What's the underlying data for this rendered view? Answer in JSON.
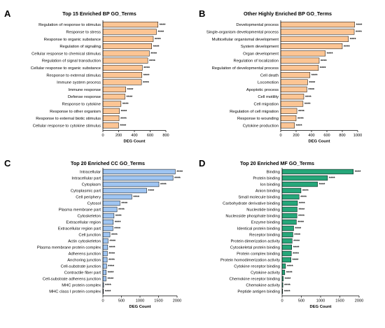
{
  "chart_data": [
    {
      "type": "bar",
      "orientation": "horizontal",
      "letter": "A",
      "title": "Top 15 Enriched BP GO_Terms",
      "xlabel": "DEG Count",
      "ylabel": "",
      "xlim": [
        0,
        800
      ],
      "xticks": [
        "0",
        "200",
        "400",
        "600",
        "800"
      ],
      "color": "#fcc594",
      "categories": [
        "Regulation of response to stimulus",
        "Response to stress",
        "Response to organic substance",
        "Regulation of signaling",
        "Cellular response to chemical stimulus",
        "Regulation of signal transduction",
        "Cellular response to organic substance",
        "Response to external stimulus",
        "Immune system process",
        "Immune response",
        "Defense response",
        "Response to cytokine",
        "Response to other organism",
        "Response to external biotic stimulus",
        "Cellular response to cytokine stimulus"
      ],
      "values": [
        700,
        680,
        640,
        620,
        590,
        570,
        500,
        495,
        490,
        290,
        280,
        230,
        210,
        205,
        200
      ],
      "significance": [
        "****",
        "****",
        "****",
        "****",
        "****",
        "****",
        "****",
        "****",
        "****",
        "****",
        "****",
        "****",
        "****",
        "****",
        "****"
      ]
    },
    {
      "type": "bar",
      "orientation": "horizontal",
      "letter": "B",
      "title": "Other Highly Enriched BP GO_Terms",
      "xlabel": "DEG Count",
      "ylabel": "",
      "xlim": [
        0,
        1000
      ],
      "xticks": [
        "0",
        "200",
        "400",
        "600",
        "800",
        "1000"
      ],
      "color": "#fcc594",
      "categories": [
        "Developmental process",
        "Single-organism developmental process",
        "Multicellular organismal development",
        "System development",
        "Organ development",
        "Regulation of localization",
        "Regulation of developmental process",
        "Cell death",
        "Locomotion",
        "Apoptotic process",
        "Cell motility",
        "Cell migration",
        "Regulation of cell migration",
        "Response to wounding",
        "Cytokine production"
      ],
      "values": [
        960,
        955,
        880,
        800,
        580,
        500,
        490,
        380,
        350,
        340,
        300,
        290,
        210,
        200,
        180
      ],
      "significance": [
        "****",
        "****",
        "****",
        "****",
        "****",
        "****",
        "****",
        "****",
        "****",
        "****",
        "****",
        "****",
        "****",
        "****",
        "****"
      ]
    },
    {
      "type": "bar",
      "orientation": "horizontal",
      "letter": "C",
      "title": "Top 20 Enriched CC GO_Terms",
      "xlabel": "DEG Count",
      "ylabel": "",
      "xlim": [
        0,
        2000
      ],
      "xticks": [
        "0",
        "500",
        "1000",
        "1500",
        "2000"
      ],
      "color": "#9fc5f2",
      "categories": [
        "Intracellular",
        "Intracellular part",
        "Cytoplasm",
        "Cytoplasmic part",
        "Cell periphery",
        "Cytosol",
        "Plasma membrane part",
        "Cytoskeleton",
        "Extracellular region",
        "Extracellular region part",
        "Cell junction",
        "Actin cytoskeleton",
        "Plasma membrane protein complex",
        "Adherens junction",
        "Anchoring junction",
        "Cell-substrate junction",
        "Contractile fiber part",
        "Cell-substrate adherens junction",
        "MHC protein complex",
        "MHC class I protein complex"
      ],
      "values": [
        1950,
        1890,
        1510,
        1180,
        780,
        460,
        380,
        300,
        280,
        270,
        190,
        140,
        130,
        120,
        115,
        100,
        90,
        85,
        20,
        15
      ],
      "significance": [
        "****",
        "****",
        "****",
        "****",
        "****",
        "****",
        "****",
        "****",
        "****",
        "****",
        "****",
        "****",
        "****",
        "****",
        "****",
        "****",
        "****",
        "****",
        "****",
        "****"
      ]
    },
    {
      "type": "bar",
      "orientation": "horizontal",
      "letter": "D",
      "title": "Top 20 Enriched MF GO_Terms",
      "xlabel": "DEG Count",
      "ylabel": "",
      "xlim": [
        0,
        2000
      ],
      "xticks": [
        "0",
        "500",
        "1000",
        "1500",
        "2000"
      ],
      "color": "#26a77a",
      "categories": [
        "Binding",
        "Protein binding",
        "Ion binding",
        "Anion binding",
        "Small molecule binding",
        "Carbohydrate derivative binding",
        "Nucleotide binding",
        "Nucleoside phosphate binding",
        "Enzyme binding",
        "Identical protein binding",
        "Receptor binding",
        "Protein dimerization activity",
        "Cytoskeletal protein binding",
        "Protein complex binding",
        "Protein homodimerization activity",
        "Cytokine receptor binding",
        "Cytokine activity",
        "Chemokine receptor binding",
        "Chemokine activity",
        "Peptide antigen binding"
      ],
      "values": [
        1850,
        1180,
        920,
        490,
        440,
        400,
        390,
        385,
        370,
        300,
        280,
        260,
        250,
        240,
        230,
        90,
        70,
        30,
        20,
        15
      ],
      "significance": [
        "****",
        "****",
        "****",
        "****",
        "****",
        "****",
        "****",
        "****",
        "****",
        "****",
        "****",
        "****",
        "****",
        "****",
        "****",
        "****",
        "****",
        "****",
        "****",
        "****"
      ]
    }
  ]
}
